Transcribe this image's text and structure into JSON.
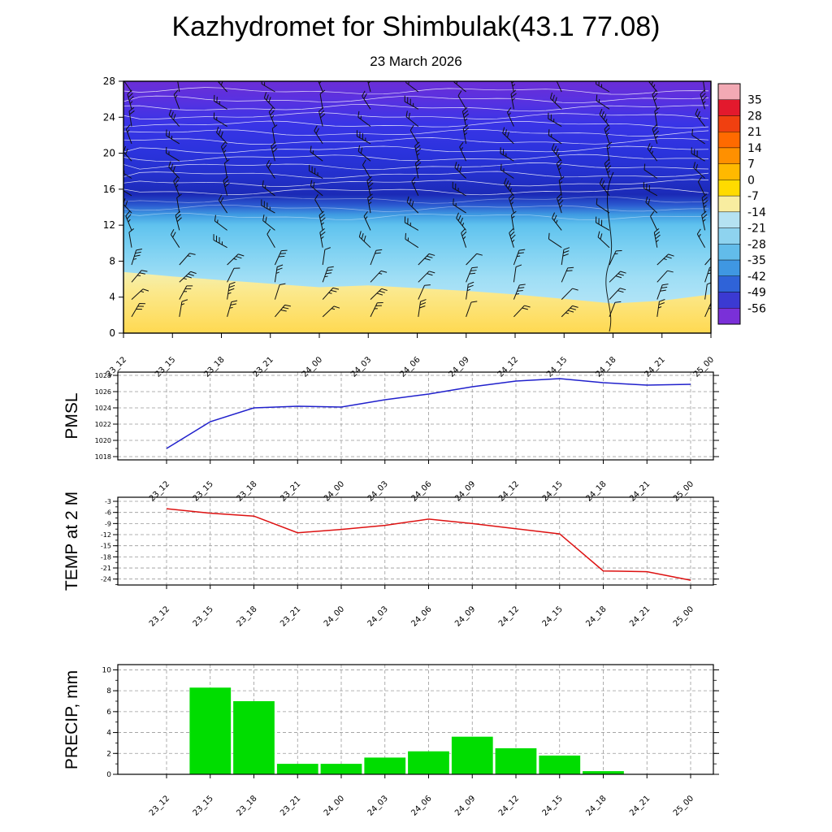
{
  "title": "Kazhydromet for Shimbulak(43.1 77.08)",
  "subtitle": "23 March 2026",
  "time_labels": [
    "23_12",
    "23_15",
    "23_18",
    "23_21",
    "24_00",
    "24_03",
    "24_06",
    "24_09",
    "24_12",
    "24_15",
    "24_18",
    "24_21",
    "25_00"
  ],
  "chart_data": [
    {
      "type": "heatmap",
      "name": "upper-air-temperature-cross-section",
      "description": "Time-height cross section: temperature shading with wind barbs and white contour lines",
      "ylabel": "",
      "ylim": [
        0,
        28
      ],
      "y_ticks": [
        0,
        4,
        8,
        12,
        16,
        20,
        24,
        28
      ],
      "x_categories": [
        "23_12",
        "23_15",
        "23_18",
        "23_21",
        "24_00",
        "24_03",
        "24_06",
        "24_09",
        "24_12",
        "24_15",
        "24_18",
        "24_21",
        "25_00"
      ],
      "surface_warm_band_top_km": [
        6.8,
        6.3,
        5.9,
        5.5,
        5.1,
        5.3,
        5.0,
        4.7,
        4.3,
        3.8,
        3.3,
        3.6,
        4.3
      ],
      "colorbar": {
        "tick_labels": [
          "35",
          "28",
          "21",
          "14",
          "7",
          "0",
          "-7",
          "-14",
          "-21",
          "-28",
          "-35",
          "-42",
          "-49",
          "-56"
        ],
        "colors": [
          "#f2a9b4",
          "#e3192d",
          "#f04010",
          "#ff6a00",
          "#ff9000",
          "#ffb900",
          "#ffdb00",
          "#f8eda0",
          "#b5e2f2",
          "#8ed3ef",
          "#62bcea",
          "#3f97e2",
          "#2f63d8",
          "#3b3ad2",
          "#7a30d8"
        ]
      }
    },
    {
      "type": "line",
      "name": "pmsl",
      "ylabel": "PMSL",
      "ylim": [
        1018,
        1028
      ],
      "y_ticks": [
        1018,
        1020,
        1022,
        1024,
        1026,
        1028
      ],
      "color": "#2020cc",
      "values": [
        1019.0,
        1022.3,
        1024.0,
        1024.2,
        1024.1,
        1025.0,
        1025.7,
        1026.6,
        1027.3,
        1027.6,
        1027.1,
        1026.8,
        1026.9
      ]
    },
    {
      "type": "line",
      "name": "temp-2m",
      "ylabel": "TEMP at 2 M",
      "ylim": [
        -24,
        -3
      ],
      "y_ticks": [
        -3,
        -6,
        -9,
        -12,
        -15,
        -18,
        -21,
        -24
      ],
      "color": "#dd1111",
      "values": [
        -5.0,
        -6.2,
        -7.0,
        -11.5,
        -10.6,
        -9.5,
        -7.8,
        -9.0,
        -10.4,
        -11.8,
        -21.8,
        -22.0,
        -24.3
      ]
    },
    {
      "type": "bar",
      "name": "precip",
      "ylabel": "PRECIP, mm",
      "ylim": [
        0,
        10
      ],
      "y_ticks": [
        0,
        2,
        4,
        6,
        8,
        10
      ],
      "color": "#00dd00",
      "values": [
        0,
        8.3,
        7.0,
        1.0,
        1.0,
        1.6,
        2.2,
        3.6,
        2.5,
        1.8,
        0.3,
        0,
        0
      ]
    }
  ]
}
